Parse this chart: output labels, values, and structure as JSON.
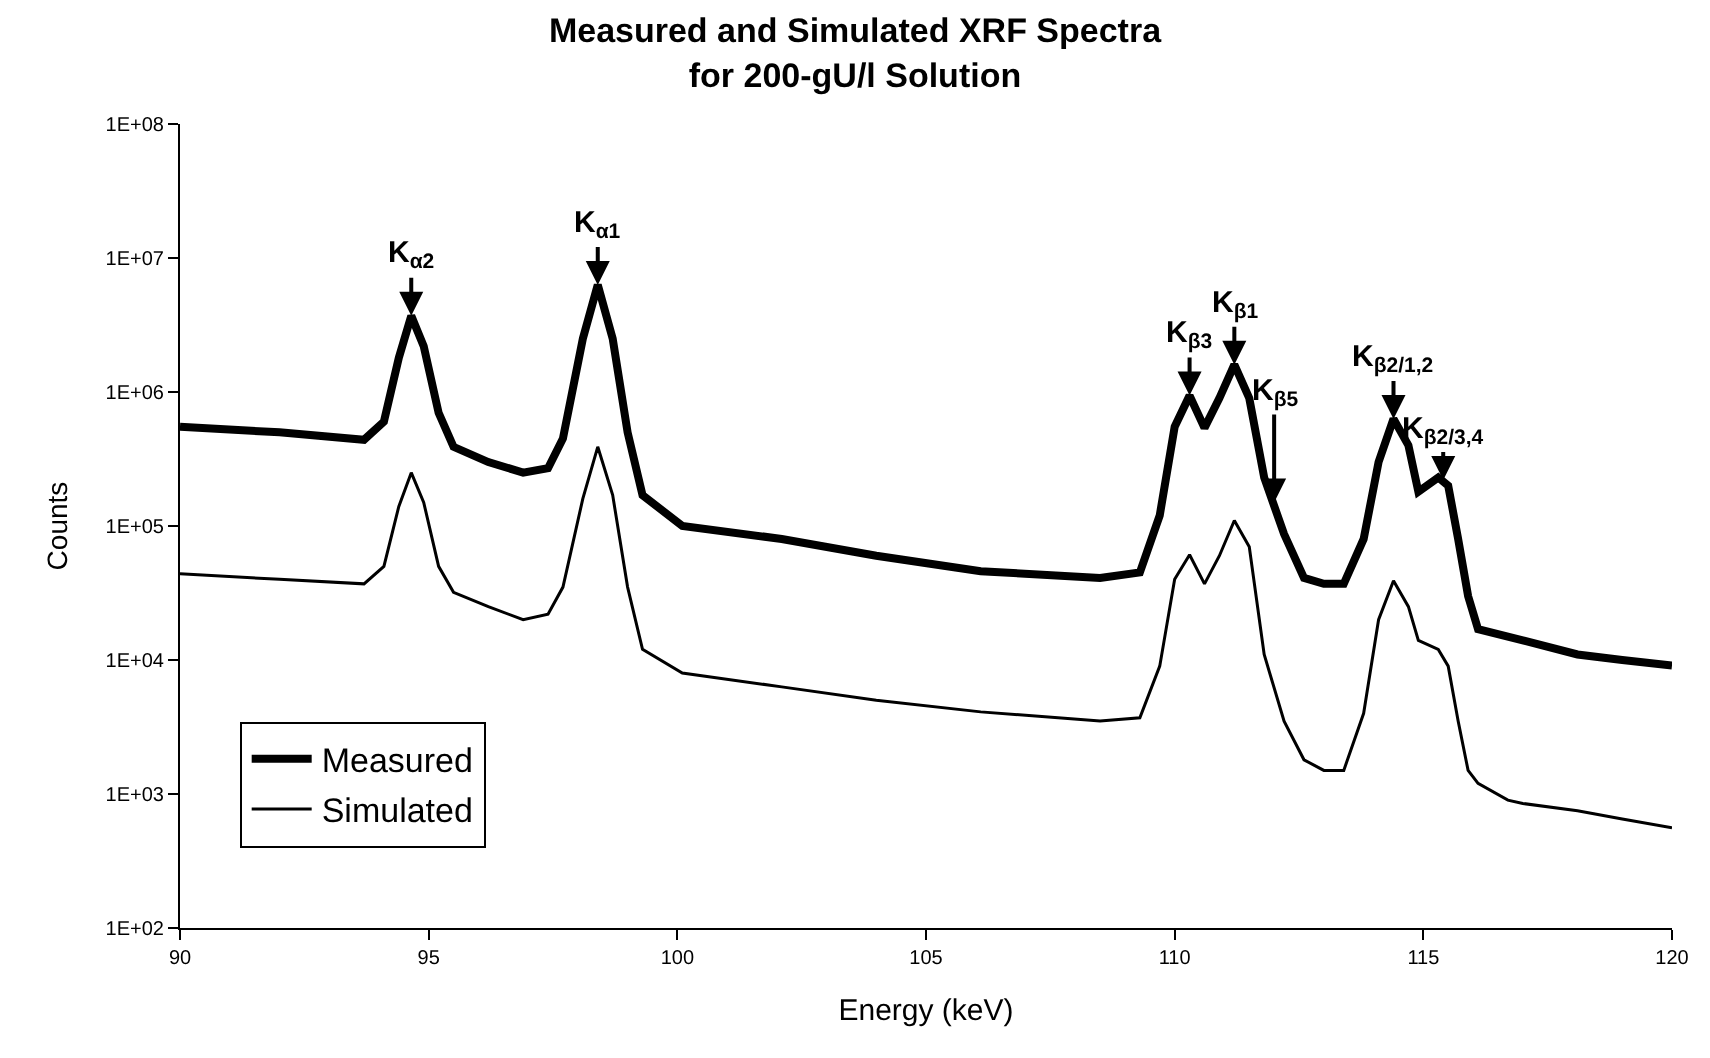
{
  "chart_data": {
    "type": "line",
    "title": "Measured and Simulated XRF Spectra\nfor 200-gU/l Solution",
    "xlabel": "Energy (keV)",
    "ylabel": "Counts",
    "log": "y",
    "legend": "bottom left",
    "marker": "none",
    "line_style": "solid",
    "xlim": [
      90,
      120
    ],
    "xticks": [
      90,
      95,
      100,
      105,
      110,
      115,
      120
    ],
    "ylim": [
      100,
      100000000
    ],
    "yticks": [
      {
        "value": 100,
        "label": "1E+02"
      },
      {
        "value": 1000,
        "label": "1E+03"
      },
      {
        "value": 10000,
        "label": "1E+04"
      },
      {
        "value": 100000,
        "label": "1E+05"
      },
      {
        "value": 1000000,
        "label": "1E+06"
      },
      {
        "value": 10000000,
        "label": "1E+07"
      },
      {
        "value": 100000000,
        "label": "1E+08"
      }
    ],
    "series": [
      {
        "name": "Measured",
        "color": "#000000",
        "x": [
          90,
          92,
          93.7,
          94.1,
          94.4,
          94.65,
          94.9,
          95.2,
          95.5,
          96.2,
          96.9,
          97.4,
          97.7,
          98.1,
          98.4,
          98.7,
          99.0,
          99.3,
          100.1,
          102.1,
          104,
          106.1,
          108.5,
          109.3,
          109.7,
          110.0,
          110.3,
          110.6,
          110.9,
          111.2,
          111.5,
          111.8,
          112.2,
          112.6,
          113.0,
          113.4,
          113.8,
          114.1,
          114.4,
          114.7,
          114.9,
          115.3,
          115.5,
          115.7,
          115.9,
          116.1,
          117,
          118.1,
          119,
          120
        ],
        "values": [
          550000,
          500000,
          440000,
          600000,
          1800000,
          3700000,
          2200000,
          700000,
          390000,
          300000,
          250000,
          270000,
          450000,
          2500000,
          6300000,
          2500000,
          500000,
          170000,
          100000,
          80000,
          60000,
          46000,
          41000,
          45000,
          120000,
          550000,
          940000,
          540000,
          900000,
          1600000,
          900000,
          230000,
          87000,
          41000,
          37000,
          37000,
          80000,
          300000,
          630000,
          400000,
          180000,
          230000,
          200000,
          80000,
          30000,
          17000,
          14000,
          11000,
          10000,
          9100
        ]
      },
      {
        "name": "Simulated",
        "color": "#000000",
        "x": [
          90,
          92,
          93.7,
          94.1,
          94.4,
          94.65,
          94.9,
          95.2,
          95.5,
          96.2,
          96.9,
          97.4,
          97.7,
          98.1,
          98.4,
          98.7,
          99.0,
          99.3,
          100.1,
          102.1,
          104,
          106.1,
          108.5,
          109.3,
          109.7,
          110.0,
          110.3,
          110.6,
          110.9,
          111.2,
          111.5,
          111.8,
          112.2,
          112.6,
          113.0,
          113.4,
          113.8,
          114.1,
          114.4,
          114.7,
          114.9,
          115.3,
          115.5,
          115.7,
          115.9,
          116.1,
          116.7,
          117,
          118.1,
          119,
          120
        ],
        "values": [
          44000,
          40000,
          37000,
          50000,
          140000,
          250000,
          150000,
          50000,
          32000,
          25000,
          20000,
          22000,
          35000,
          160000,
          390000,
          170000,
          35000,
          12000,
          8000,
          6300,
          5000,
          4100,
          3500,
          3700,
          9000,
          40000,
          61000,
          37000,
          60000,
          110000,
          70000,
          11000,
          3500,
          1800,
          1500,
          1500,
          4000,
          20000,
          39000,
          25000,
          14000,
          12000,
          9000,
          3500,
          1500,
          1200,
          900,
          850,
          750,
          650,
          560
        ]
      }
    ],
    "annotations": [
      {
        "text": "K$_{α2}$",
        "x": 94.65,
        "y": 3700000
      },
      {
        "text": "K$_{α1}$",
        "x": 98.4,
        "y": 6300000
      },
      {
        "text": "K$_{β3}$",
        "x": 110.3,
        "y": 940000
      },
      {
        "text": "K$_{β1}$",
        "x": 111.2,
        "y": 1600000
      },
      {
        "text": "K$_{β5}$",
        "x": 112.0,
        "y": 150000
      },
      {
        "text": "K$_{β2/1,2}$",
        "x": 114.4,
        "y": 630000
      },
      {
        "text": "K$_{β2/3,4}$",
        "x": 115.4,
        "y": 220000
      }
    ]
  }
}
